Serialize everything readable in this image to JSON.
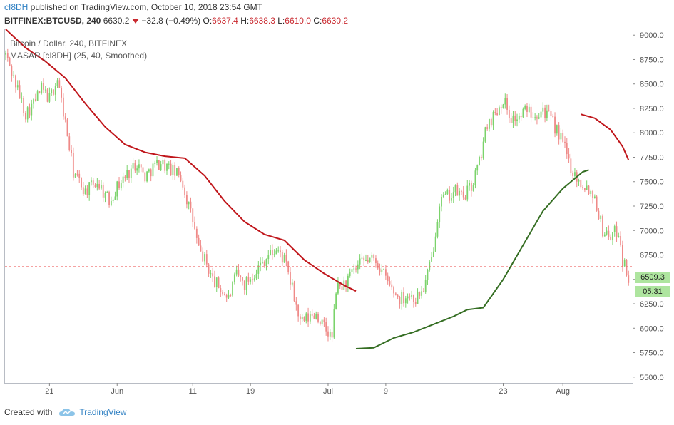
{
  "header": {
    "author": "cI8DH",
    "published_text": " published on TradingView.com, October 10, 2018 23:54 GMT",
    "symbol": "BITFINEX:BTCUSD, 240",
    "last": "6630.2",
    "change": "−32.8 (−0.49%)",
    "o_label": "O:",
    "o_value": "6637.4",
    "h_label": "H:",
    "h_value": "6638.3",
    "l_label": "L:",
    "l_value": "6610.0",
    "c_label": "C:",
    "c_value": "6630.2"
  },
  "legend": {
    "title": "Bitcoin / Dollar, 240, BITFINEX",
    "indicator": "MASAR [cI8DH] (25, 40, Smoothed)"
  },
  "badges": {
    "price": "6509.3",
    "countdown": "05:31"
  },
  "footer": {
    "created_with": "Created with",
    "brand": "TradingView"
  },
  "colors": {
    "up": "#7bd36b",
    "down": "#ef8a88",
    "ma_down": "#c0161b",
    "ma_up": "#356e23",
    "dashed": "#ef6a6a",
    "axis_text": "#555555",
    "grid_border": "#b8bcc4"
  },
  "chart_data": {
    "type": "candlestick",
    "title": "Bitcoin / Dollar, 240, BITFINEX",
    "xlabel": "",
    "ylabel": "",
    "ylim": [
      5440,
      9060
    ],
    "y_ticks": [
      5500,
      5750,
      6000,
      6250,
      6500,
      6750,
      7000,
      7250,
      7500,
      7750,
      8000,
      8250,
      8500,
      8750,
      9000
    ],
    "y_tick_labels": [
      "5500.0",
      "5750.0",
      "6000.0",
      "6250.0",
      "6500.0",
      "6750.0",
      "7000.0",
      "7250.0",
      "7500.0",
      "7750.0",
      "8000.0",
      "8250.0",
      "8500.0",
      "8750.0",
      "9000.0"
    ],
    "x_tick_labels": [
      "21",
      "Jun",
      "11",
      "19",
      "Jul",
      "9",
      "23",
      "Aug"
    ],
    "x_tick_bar_index": [
      22,
      56,
      94,
      123,
      162,
      191,
      250,
      280
    ],
    "reference_line": 6630.2,
    "price_series_anchors": [
      [
        0,
        8800
      ],
      [
        5,
        8500
      ],
      [
        10,
        8200
      ],
      [
        14,
        8300
      ],
      [
        18,
        8450
      ],
      [
        22,
        8350
      ],
      [
        26,
        8550
      ],
      [
        30,
        8100
      ],
      [
        34,
        7600
      ],
      [
        40,
        7400
      ],
      [
        46,
        7500
      ],
      [
        52,
        7300
      ],
      [
        56,
        7450
      ],
      [
        60,
        7550
      ],
      [
        66,
        7700
      ],
      [
        70,
        7550
      ],
      [
        74,
        7650
      ],
      [
        78,
        7700
      ],
      [
        84,
        7600
      ],
      [
        88,
        7550
      ],
      [
        94,
        7100
      ],
      [
        97,
        6800
      ],
      [
        100,
        6700
      ],
      [
        104,
        6500
      ],
      [
        108,
        6400
      ],
      [
        112,
        6300
      ],
      [
        116,
        6550
      ],
      [
        120,
        6450
      ],
      [
        126,
        6600
      ],
      [
        132,
        6750
      ],
      [
        136,
        6800
      ],
      [
        140,
        6700
      ],
      [
        144,
        6400
      ],
      [
        148,
        6050
      ],
      [
        152,
        6100
      ],
      [
        156,
        6150
      ],
      [
        160,
        6000
      ],
      [
        164,
        5900
      ],
      [
        166,
        6400
      ],
      [
        170,
        6450
      ],
      [
        174,
        6550
      ],
      [
        178,
        6650
      ],
      [
        182,
        6700
      ],
      [
        186,
        6700
      ],
      [
        190,
        6550
      ],
      [
        194,
        6400
      ],
      [
        198,
        6300
      ],
      [
        202,
        6350
      ],
      [
        206,
        6300
      ],
      [
        210,
        6400
      ],
      [
        214,
        6700
      ],
      [
        218,
        7300
      ],
      [
        222,
        7350
      ],
      [
        226,
        7400
      ],
      [
        230,
        7350
      ],
      [
        234,
        7450
      ],
      [
        238,
        7700
      ],
      [
        242,
        8100
      ],
      [
        246,
        8200
      ],
      [
        250,
        8350
      ],
      [
        254,
        8150
      ],
      [
        258,
        8150
      ],
      [
        262,
        8250
      ],
      [
        266,
        8200
      ],
      [
        270,
        8250
      ],
      [
        275,
        8100
      ],
      [
        280,
        7900
      ],
      [
        284,
        7650
      ],
      [
        288,
        7500
      ],
      [
        292,
        7450
      ],
      [
        296,
        7350
      ],
      [
        300,
        7000
      ],
      [
        304,
        6950
      ],
      [
        308,
        7000
      ],
      [
        310,
        6700
      ],
      [
        313,
        6520
      ]
    ],
    "series": [
      {
        "name": "MASAR falling (red)",
        "color": "#c0161b",
        "points": [
          [
            0,
            9060
          ],
          [
            10,
            8870
          ],
          [
            20,
            8730
          ],
          [
            30,
            8560
          ],
          [
            40,
            8300
          ],
          [
            50,
            8060
          ],
          [
            60,
            7880
          ],
          [
            70,
            7800
          ],
          [
            80,
            7760
          ],
          [
            90,
            7740
          ],
          [
            100,
            7560
          ],
          [
            110,
            7300
          ],
          [
            120,
            7090
          ],
          [
            130,
            6960
          ],
          [
            140,
            6900
          ],
          [
            150,
            6700
          ],
          [
            160,
            6560
          ],
          [
            170,
            6440
          ],
          [
            176,
            6380
          ]
        ]
      },
      {
        "name": "MASAR rising (green)",
        "color": "#356e23",
        "points": [
          [
            176,
            5790
          ],
          [
            185,
            5800
          ],
          [
            195,
            5900
          ],
          [
            205,
            5960
          ],
          [
            215,
            6040
          ],
          [
            225,
            6120
          ],
          [
            232,
            6190
          ],
          [
            240,
            6210
          ],
          [
            250,
            6500
          ],
          [
            260,
            6850
          ],
          [
            270,
            7200
          ],
          [
            280,
            7430
          ],
          [
            290,
            7600
          ],
          [
            293,
            7620
          ]
        ]
      },
      {
        "name": "MASAR falling (red) 2",
        "color": "#c0161b",
        "points": [
          [
            289,
            8190
          ],
          [
            296,
            8150
          ],
          [
            304,
            8030
          ],
          [
            310,
            7860
          ],
          [
            313,
            7720
          ]
        ]
      }
    ]
  }
}
